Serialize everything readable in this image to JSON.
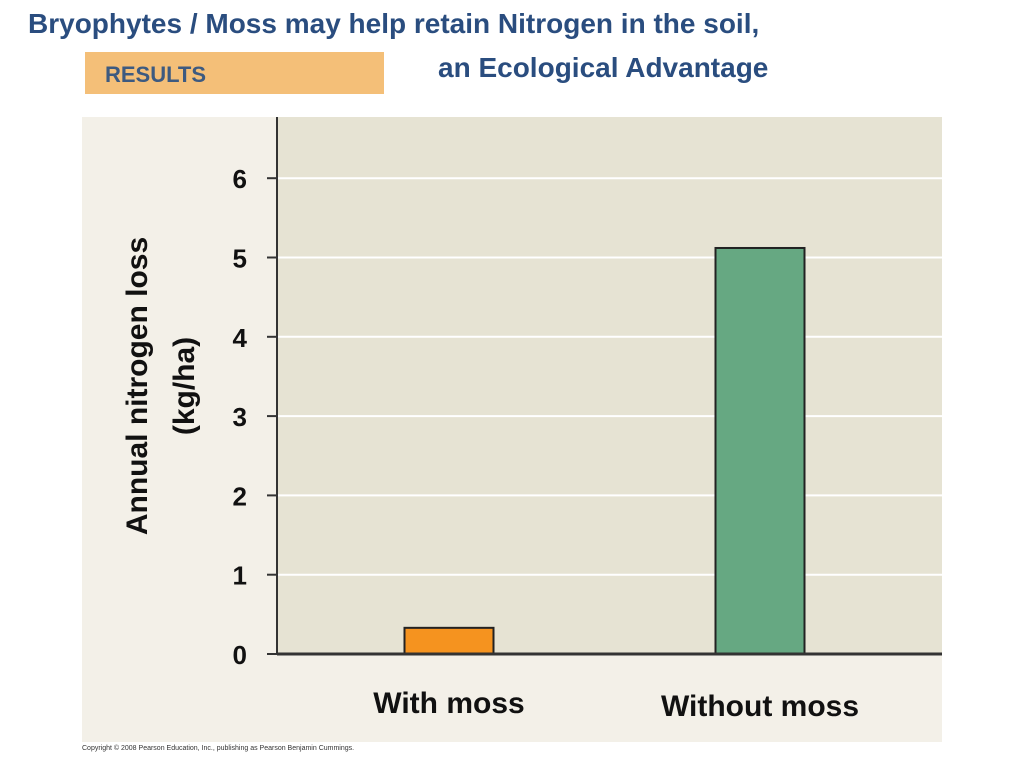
{
  "title": {
    "line1": "Bryophytes  / Moss may help retain Nitrogen in the soil,",
    "line2": "an Ecological Advantage"
  },
  "badge": {
    "label": "RESULTS"
  },
  "copyright": "Copyright © 2008 Pearson Education, Inc., publishing as Pearson Benjamin Cummings.",
  "colors": {
    "title": "#2a4d7f",
    "badge_bg": "#f4bf78",
    "panel_bg": "#f3f0e8",
    "plot_bg": "#e6e3d3",
    "gridline": "#ffffff",
    "with_moss": "#f5931f",
    "without_moss": "#66a882"
  },
  "chart_data": {
    "type": "bar",
    "title": "",
    "categories": [
      "With moss",
      "Without moss"
    ],
    "values": [
      0.33,
      5.12
    ],
    "ylabel_lines": [
      "Annual nitrogen loss",
      "(kg/ha)"
    ],
    "xlabel": "",
    "ylim": [
      0,
      6.5
    ],
    "yticks": [
      0,
      1,
      2,
      3,
      4,
      5,
      6
    ],
    "grid": true,
    "legend": "none"
  }
}
